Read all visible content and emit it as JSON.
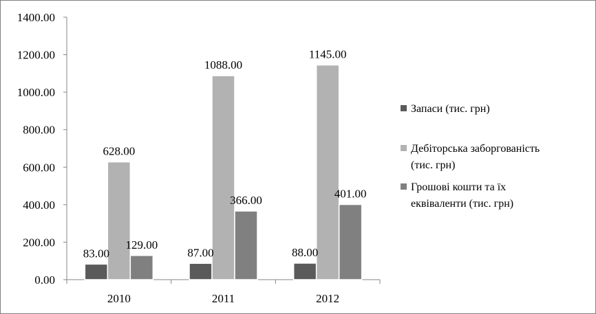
{
  "colors": {
    "series": [
      "#5a5a5a",
      "#b2b2b2",
      "#808080"
    ],
    "axis": "#868686",
    "frame": "#7f7f7f",
    "bar_edge": "#ffffff"
  },
  "chart_data": {
    "type": "bar",
    "categories": [
      "2010",
      "2011",
      "2012"
    ],
    "series": [
      {
        "name": "Запаси (тис. грн)",
        "values": [
          83,
          87,
          88
        ]
      },
      {
        "name": "Дебіторська заборгованість (тис. грн)",
        "values": [
          628,
          1088,
          1145
        ]
      },
      {
        "name": "Грошові кошти та їх еквіваленти (тис. грн)",
        "values": [
          129,
          366,
          401
        ]
      }
    ],
    "data_labels": [
      [
        "83.00",
        "628.00",
        "129.00"
      ],
      [
        "87.00",
        "1088.00",
        "366.00"
      ],
      [
        "88.00",
        "1145.00",
        "401.00"
      ]
    ],
    "ylim": [
      0,
      1400
    ],
    "yticks": [
      0,
      200,
      400,
      600,
      800,
      1000,
      1200,
      1400
    ],
    "ytick_labels": [
      "0.00",
      "200.00",
      "400.00",
      "600.00",
      "800.00",
      "1000.00",
      "1200.00",
      "1400.00"
    ],
    "title": "",
    "xlabel": "",
    "ylabel": "",
    "grid": false,
    "legend_position": "right",
    "legend_lines": [
      [
        "Запаси (тис. грн)"
      ],
      [
        "Дебіторська заборгованість",
        "(тис. грн)"
      ],
      [
        "Грошові кошти та їх",
        "еквіваленти (тис. грн)"
      ]
    ]
  }
}
